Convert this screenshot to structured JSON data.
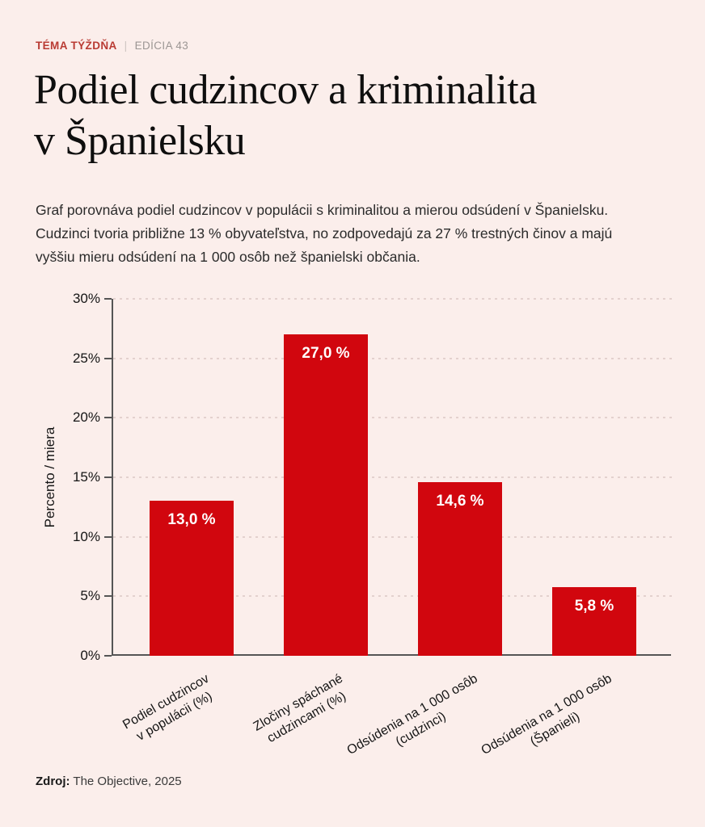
{
  "kicker": {
    "label": "TÉMA TÝŽDŇA",
    "separator": "|",
    "edition": "EDÍCIA 43"
  },
  "title": {
    "line1": "Podiel cudzincov a kriminalita",
    "line2": "v Španielsku"
  },
  "intro": {
    "line1": "Graf porovnáva podiel cudzincov v populácii s kriminalitou a mierou odsúdení v Španielsku.",
    "line2": "Cudzinci tvoria približne 13 % obyvateľstva, no zodpovedajú za 27 % trestných činov a majú",
    "line3": "vyššiu mieru odsúdení na 1 000 osôb než španielski občania."
  },
  "source": {
    "label": "Zdroj:",
    "text": "The Objective, 2025"
  },
  "colors": {
    "background": "#FBEEEB",
    "bar": "#D1060E",
    "kicker_red": "#B93B33",
    "muted_gray": "#9C9694",
    "axis": "#555555",
    "grid": "#E3D1CE"
  },
  "chart_data": {
    "type": "bar",
    "categories": [
      "Podiel cudzincov v populácii (%)",
      "Zločiny spáchané cudzincami (%)",
      "Odsúdenia na 1 000 osôb (cudzinci)",
      "Odsúdenia na 1 000 osôb (Španieli)"
    ],
    "category_lines": [
      [
        "Podiel cudzincov",
        "v populácii (%)"
      ],
      [
        "Zločiny spáchané",
        "cudzincami (%)"
      ],
      [
        "Odsúdenia na 1 000 osôb",
        "(cudzinci)"
      ],
      [
        "Odsúdenia na 1 000 osôb",
        "(Španieli)"
      ]
    ],
    "values": [
      13.0,
      27.0,
      14.6,
      5.8
    ],
    "value_labels": [
      "13,0 %",
      "27,0 %",
      "14,6 %",
      "5,8 %"
    ],
    "title": "Podiel cudzincov a kriminalita v Španielsku",
    "xlabel": "",
    "ylabel": "Percento / miera",
    "ylim": [
      0,
      30
    ],
    "yticks": [
      0,
      5,
      10,
      15,
      20,
      25,
      30
    ],
    "ytick_suffix": "%",
    "grid": true,
    "legend": false,
    "bar_color": "#D1060E",
    "value_label_color": "#FFFFFF"
  }
}
